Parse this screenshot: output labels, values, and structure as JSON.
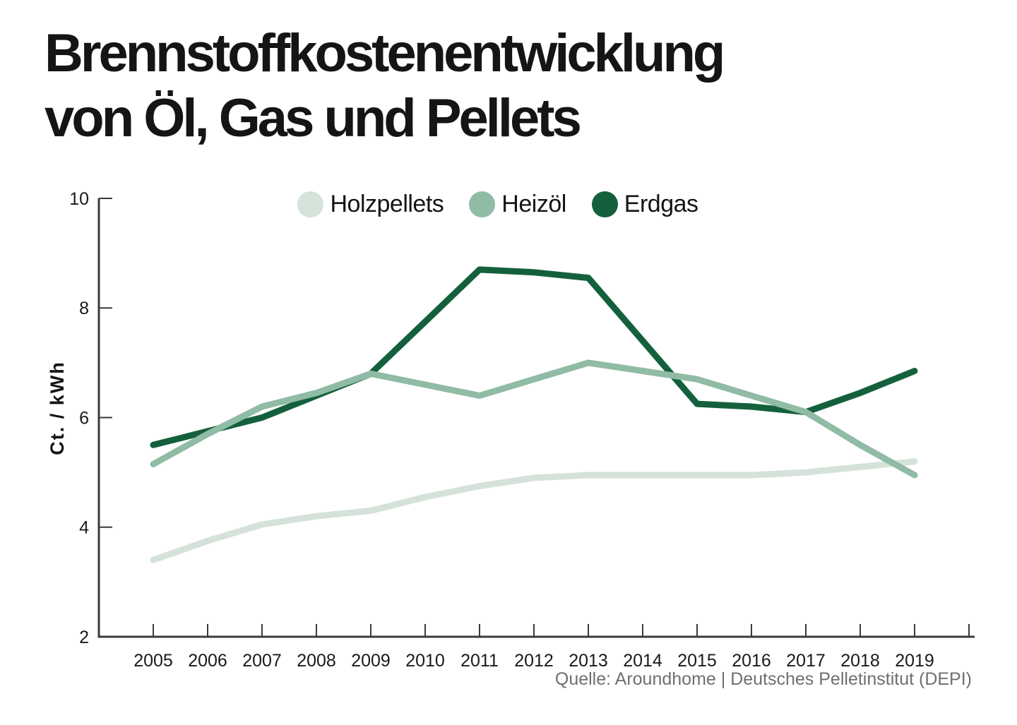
{
  "page": {
    "title_line1": "Brennstoffkostenentwicklung",
    "title_line2": "von Öl, Gas und Pellets",
    "source": "Quelle: Aroundhome | Deutsches Pelletinstitut (DEPI)"
  },
  "colors": {
    "background": "#ffffff",
    "title_text": "#151515",
    "axis": "#3a3a3a",
    "tick_label": "#1a1a1a",
    "source_text": "#6f6f6f"
  },
  "chart_data": {
    "type": "line",
    "title": "Brennstoffkostenentwicklung von Öl, Gas und Pellets",
    "xlabel": "",
    "ylabel": "Ct. / kWh",
    "ylim": [
      2,
      10
    ],
    "ytick_step": 2,
    "grid": false,
    "legend_position": "top-center",
    "categories": [
      "2005",
      "2006",
      "2007",
      "2008",
      "2009",
      "2010",
      "2011",
      "2012",
      "2013",
      "2014",
      "2015",
      "2016",
      "2017",
      "2018",
      "2019"
    ],
    "series": [
      {
        "name": "Holzpellets",
        "color": "#d5e2da",
        "values": [
          3.4,
          3.75,
          4.05,
          4.2,
          4.3,
          4.55,
          4.75,
          4.9,
          4.95,
          4.95,
          4.95,
          4.95,
          5.0,
          5.1,
          5.2
        ]
      },
      {
        "name": "Heizöl",
        "color": "#90bba4",
        "values": [
          5.15,
          5.7,
          6.2,
          6.45,
          6.8,
          6.6,
          6.4,
          6.7,
          7.0,
          6.85,
          6.7,
          6.4,
          6.1,
          5.5,
          4.95
        ]
      },
      {
        "name": "Erdgas",
        "color": "#14603c",
        "values": [
          5.5,
          5.75,
          6.0,
          6.4,
          6.8,
          7.75,
          8.7,
          8.65,
          8.55,
          7.4,
          6.25,
          6.2,
          6.1,
          6.45,
          6.85
        ]
      }
    ]
  }
}
